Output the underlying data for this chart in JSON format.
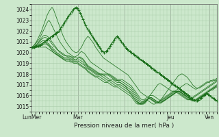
{
  "title": "",
  "xlabel": "Pression niveau de la mer( hPa )",
  "bg_color": "#cce8cc",
  "grid_color": "#aaccaa",
  "line_color": "#1a6e1a",
  "ylim": [
    1014.5,
    1024.5
  ],
  "yticks": [
    1015,
    1016,
    1017,
    1018,
    1019,
    1020,
    1021,
    1022,
    1023,
    1024
  ],
  "total_points": 260,
  "day_positions": [
    0,
    65,
    130,
    195,
    250
  ],
  "day_labels": [
    "LunMer",
    "Mar",
    "",
    "Jeu",
    "Ven"
  ],
  "series": [
    [
      1020.5,
      1020.6,
      1020.8,
      1021.0,
      1021.3,
      1021.6,
      1021.9,
      1022.3,
      1022.7,
      1023.1,
      1023.5,
      1023.8,
      1024.0,
      1024.2,
      1024.0,
      1023.6,
      1023.2,
      1022.8,
      1022.4,
      1022.0,
      1021.6,
      1021.3,
      1021.0,
      1020.8,
      1020.6,
      1020.4,
      1020.2,
      1020.1,
      1020.0,
      1020.0,
      1020.1,
      1020.3,
      1020.5,
      1020.8,
      1021.1,
      1021.3,
      1021.5,
      1021.4,
      1021.2,
      1021.0,
      1020.8,
      1020.5,
      1020.3,
      1020.1,
      1019.9,
      1019.7,
      1019.5,
      1019.4,
      1019.3,
      1019.2,
      1019.1,
      1019.0,
      1018.9,
      1018.8,
      1018.7,
      1018.6,
      1018.5,
      1018.4,
      1018.3,
      1018.2,
      1018.1,
      1018.0,
      1017.9,
      1017.7,
      1017.5,
      1017.3,
      1017.1,
      1016.9,
      1016.7,
      1016.5,
      1016.3,
      1016.2,
      1016.1,
      1016.0,
      1015.9,
      1015.8,
      1015.7,
      1015.6,
      1015.5,
      1015.4,
      1015.3,
      1015.3,
      1015.4,
      1015.6,
      1015.8,
      1016.0,
      1016.2,
      1016.4,
      1016.6,
      1016.8,
      1017.0,
      1017.2,
      1017.4,
      1017.6,
      1017.8,
      1017.9,
      1018.0,
      1018.0,
      1017.9,
      1017.8,
      1017.7,
      1017.5,
      1017.3,
      1017.1,
      1016.9,
      1016.8,
      1016.7,
      1016.7,
      1016.7,
      1016.8,
      1016.9,
      1017.0,
      1017.1,
      1017.2,
      1017.2,
      1017.3,
      1017.3,
      1017.4,
      1017.4,
      1017.5
    ],
    [
      1020.5,
      1020.6,
      1020.7,
      1020.9,
      1021.1,
      1021.3,
      1021.6,
      1021.9,
      1022.2,
      1022.5,
      1022.8,
      1023.0,
      1022.8,
      1022.5,
      1022.2,
      1021.9,
      1021.6,
      1021.3,
      1021.0,
      1020.8,
      1020.6,
      1020.4,
      1020.2,
      1020.0,
      1019.9,
      1019.8,
      1019.7,
      1019.6,
      1019.6,
      1019.7,
      1019.8,
      1020.0,
      1020.1,
      1020.0,
      1019.9,
      1019.7,
      1019.5,
      1019.3,
      1019.1,
      1019.0,
      1018.9,
      1018.8,
      1018.7,
      1018.6,
      1018.5,
      1018.4,
      1018.3,
      1018.2,
      1018.1,
      1018.0,
      1017.9,
      1017.8,
      1017.7,
      1017.6,
      1017.5,
      1017.4,
      1017.3,
      1017.2,
      1017.1,
      1017.0,
      1016.9,
      1016.7,
      1016.5,
      1016.3,
      1016.1,
      1015.9,
      1015.7,
      1015.5,
      1015.4,
      1015.3,
      1015.2,
      1015.2,
      1015.3,
      1015.4,
      1015.6,
      1015.8,
      1016.0,
      1016.2,
      1016.4,
      1016.6,
      1016.8,
      1017.0,
      1017.1,
      1017.1,
      1017.0,
      1016.9,
      1016.8,
      1016.7,
      1016.6,
      1016.5,
      1016.4,
      1016.4,
      1016.4,
      1016.5,
      1016.6,
      1016.7,
      1016.8,
      1016.9,
      1017.0,
      1017.1,
      1017.1,
      1017.0,
      1016.9,
      1016.8,
      1016.7,
      1016.6,
      1016.6,
      1016.7,
      1016.8,
      1016.9,
      1017.0,
      1017.1,
      1017.2,
      1017.3,
      1017.3,
      1017.4,
      1017.4,
      1017.5,
      1017.5,
      1017.6
    ],
    [
      1020.5,
      1020.5,
      1020.6,
      1020.7,
      1020.9,
      1021.1,
      1021.3,
      1021.5,
      1021.6,
      1021.6,
      1021.5,
      1021.4,
      1021.2,
      1021.0,
      1020.8,
      1020.6,
      1020.4,
      1020.2,
      1020.0,
      1019.9,
      1019.8,
      1019.7,
      1019.7,
      1019.7,
      1019.7,
      1019.6,
      1019.5,
      1019.4,
      1019.3,
      1019.4,
      1019.5,
      1019.6,
      1019.5,
      1019.4,
      1019.2,
      1019.0,
      1018.8,
      1018.7,
      1018.6,
      1018.5,
      1018.4,
      1018.3,
      1018.2,
      1018.1,
      1018.0,
      1018.0,
      1018.0,
      1018.0,
      1018.0,
      1018.0,
      1018.0,
      1017.9,
      1017.8,
      1017.7,
      1017.6,
      1017.5,
      1017.5,
      1017.5,
      1017.5,
      1017.4,
      1017.3,
      1017.2,
      1017.1,
      1017.0,
      1016.9,
      1016.7,
      1016.5,
      1016.3,
      1016.1,
      1015.9,
      1015.7,
      1015.6,
      1015.6,
      1015.7,
      1015.8,
      1015.9,
      1016.0,
      1016.0,
      1016.0,
      1015.9,
      1015.8,
      1015.7,
      1015.6,
      1015.5,
      1015.5,
      1015.5,
      1015.6,
      1015.7,
      1015.8,
      1015.9,
      1016.0,
      1016.1,
      1016.2,
      1016.3,
      1016.4,
      1016.4,
      1016.3,
      1016.2,
      1016.1,
      1016.0,
      1015.9,
      1015.8,
      1015.7,
      1015.6,
      1015.5,
      1015.5,
      1015.6,
      1015.7,
      1015.8,
      1015.9,
      1016.0,
      1016.1,
      1016.2,
      1016.3,
      1016.4,
      1016.5,
      1016.5,
      1016.6,
      1016.7,
      1016.8
    ],
    [
      1020.5,
      1020.5,
      1020.6,
      1020.7,
      1020.8,
      1021.0,
      1021.2,
      1021.3,
      1021.4,
      1021.4,
      1021.3,
      1021.2,
      1021.0,
      1020.8,
      1020.6,
      1020.5,
      1020.3,
      1020.2,
      1020.1,
      1020.0,
      1019.9,
      1019.8,
      1019.7,
      1019.6,
      1019.6,
      1019.6,
      1019.6,
      1019.5,
      1019.5,
      1019.5,
      1019.5,
      1019.5,
      1019.4,
      1019.3,
      1019.1,
      1018.9,
      1018.7,
      1018.6,
      1018.5,
      1018.4,
      1018.3,
      1018.2,
      1018.1,
      1018.0,
      1017.9,
      1017.9,
      1017.9,
      1017.9,
      1017.9,
      1017.9,
      1017.8,
      1017.7,
      1017.6,
      1017.5,
      1017.4,
      1017.4,
      1017.4,
      1017.4,
      1017.3,
      1017.2,
      1017.1,
      1017.0,
      1016.9,
      1016.8,
      1016.7,
      1016.5,
      1016.3,
      1016.1,
      1015.9,
      1015.7,
      1015.5,
      1015.4,
      1015.4,
      1015.5,
      1015.6,
      1015.7,
      1015.8,
      1015.8,
      1015.7,
      1015.6,
      1015.5,
      1015.4,
      1015.3,
      1015.3,
      1015.4,
      1015.5,
      1015.6,
      1015.7,
      1015.8,
      1015.9,
      1016.0,
      1016.1,
      1016.2,
      1016.3,
      1016.4,
      1016.4,
      1016.3,
      1016.2,
      1016.1,
      1016.0,
      1015.9,
      1015.8,
      1015.7,
      1015.6,
      1015.5,
      1015.5,
      1015.6,
      1015.7,
      1015.8,
      1015.9,
      1016.0,
      1016.1,
      1016.2,
      1016.3,
      1016.4,
      1016.5,
      1016.6,
      1016.7,
      1016.8,
      1016.9
    ],
    [
      1020.4,
      1020.5,
      1020.5,
      1020.6,
      1020.7,
      1020.8,
      1021.0,
      1021.1,
      1021.1,
      1021.0,
      1020.9,
      1020.8,
      1020.6,
      1020.5,
      1020.3,
      1020.2,
      1020.0,
      1019.9,
      1019.8,
      1019.7,
      1019.6,
      1019.5,
      1019.5,
      1019.5,
      1019.5,
      1019.4,
      1019.4,
      1019.3,
      1019.3,
      1019.3,
      1019.3,
      1019.3,
      1019.2,
      1019.1,
      1018.9,
      1018.8,
      1018.6,
      1018.5,
      1018.4,
      1018.3,
      1018.2,
      1018.1,
      1018.0,
      1018.0,
      1018.0,
      1018.0,
      1017.9,
      1017.8,
      1017.7,
      1017.6,
      1017.5,
      1017.5,
      1017.5,
      1017.4,
      1017.3,
      1017.2,
      1017.2,
      1017.2,
      1017.1,
      1017.0,
      1016.9,
      1016.8,
      1016.7,
      1016.6,
      1016.5,
      1016.3,
      1016.1,
      1015.9,
      1015.7,
      1015.5,
      1015.3,
      1015.2,
      1015.2,
      1015.3,
      1015.5,
      1015.7,
      1015.8,
      1015.8,
      1015.7,
      1015.6,
      1015.5,
      1015.4,
      1015.3,
      1015.3,
      1015.4,
      1015.5,
      1015.6,
      1015.7,
      1015.8,
      1015.9,
      1016.0,
      1016.1,
      1016.2,
      1016.3,
      1016.4,
      1016.4,
      1016.3,
      1016.2,
      1016.1,
      1016.0,
      1015.9,
      1015.8,
      1015.7,
      1015.6,
      1015.5,
      1015.5,
      1015.6,
      1015.7,
      1015.8,
      1015.9,
      1016.0,
      1016.1,
      1016.2,
      1016.3,
      1016.4,
      1016.5,
      1016.6,
      1016.7,
      1016.8,
      1016.9
    ],
    [
      1020.4,
      1020.4,
      1020.5,
      1020.5,
      1020.6,
      1020.7,
      1020.8,
      1020.9,
      1021.0,
      1020.9,
      1020.8,
      1020.7,
      1020.5,
      1020.3,
      1020.2,
      1020.0,
      1019.9,
      1019.8,
      1019.7,
      1019.6,
      1019.5,
      1019.4,
      1019.4,
      1019.4,
      1019.4,
      1019.3,
      1019.3,
      1019.2,
      1019.2,
      1019.2,
      1019.2,
      1019.1,
      1019.0,
      1018.9,
      1018.8,
      1018.6,
      1018.5,
      1018.4,
      1018.3,
      1018.2,
      1018.1,
      1018.0,
      1017.9,
      1017.9,
      1017.9,
      1017.8,
      1017.7,
      1017.6,
      1017.5,
      1017.4,
      1017.4,
      1017.4,
      1017.3,
      1017.2,
      1017.1,
      1017.0,
      1017.0,
      1017.0,
      1016.9,
      1016.8,
      1016.7,
      1016.6,
      1016.5,
      1016.4,
      1016.3,
      1016.1,
      1015.9,
      1015.7,
      1015.5,
      1015.3,
      1015.2,
      1015.2,
      1015.3,
      1015.4,
      1015.6,
      1015.7,
      1015.8,
      1015.7,
      1015.6,
      1015.5,
      1015.4,
      1015.3,
      1015.3,
      1015.4,
      1015.5,
      1015.6,
      1015.7,
      1015.8,
      1015.9,
      1016.0,
      1016.1,
      1016.2,
      1016.3,
      1016.4,
      1016.4,
      1016.3,
      1016.2,
      1016.1,
      1016.0,
      1015.9,
      1015.8,
      1015.7,
      1015.6,
      1015.5,
      1015.5,
      1015.6,
      1015.7,
      1015.8,
      1015.9,
      1016.0,
      1016.1,
      1016.2,
      1016.3,
      1016.4,
      1016.5,
      1016.6,
      1016.7,
      1016.8,
      1016.9,
      1017.0
    ],
    [
      1020.3,
      1020.4,
      1020.4,
      1020.5,
      1020.5,
      1020.6,
      1020.7,
      1020.8,
      1020.8,
      1020.8,
      1020.7,
      1020.6,
      1020.4,
      1020.2,
      1020.0,
      1019.9,
      1019.8,
      1019.7,
      1019.6,
      1019.5,
      1019.4,
      1019.3,
      1019.3,
      1019.3,
      1019.3,
      1019.2,
      1019.2,
      1019.1,
      1019.1,
      1019.1,
      1019.0,
      1018.9,
      1018.8,
      1018.7,
      1018.6,
      1018.5,
      1018.3,
      1018.2,
      1018.1,
      1018.0,
      1017.9,
      1017.8,
      1017.8,
      1017.8,
      1017.7,
      1017.6,
      1017.5,
      1017.4,
      1017.3,
      1017.3,
      1017.3,
      1017.2,
      1017.1,
      1017.0,
      1016.9,
      1016.9,
      1016.9,
      1016.8,
      1016.7,
      1016.6,
      1016.5,
      1016.4,
      1016.3,
      1016.2,
      1016.1,
      1015.9,
      1015.7,
      1015.5,
      1015.3,
      1015.2,
      1015.2,
      1015.3,
      1015.4,
      1015.5,
      1015.6,
      1015.7,
      1015.7,
      1015.6,
      1015.5,
      1015.4,
      1015.3,
      1015.3,
      1015.4,
      1015.5,
      1015.6,
      1015.7,
      1015.8,
      1015.9,
      1016.0,
      1016.1,
      1016.2,
      1016.3,
      1016.4,
      1016.4,
      1016.3,
      1016.2,
      1016.1,
      1016.0,
      1015.9,
      1015.8,
      1015.7,
      1015.6,
      1015.6,
      1015.7,
      1015.8,
      1015.9,
      1016.0,
      1016.1,
      1016.2,
      1016.3,
      1016.4,
      1016.5,
      1016.6,
      1016.7,
      1016.8,
      1016.9,
      1017.0,
      1017.1,
      1017.2,
      1017.3
    ],
    [
      1020.5,
      1020.5,
      1020.5,
      1020.5,
      1020.5,
      1020.5,
      1020.5,
      1020.5,
      1020.5,
      1020.5,
      1020.4,
      1020.3,
      1020.2,
      1020.1,
      1020.0,
      1019.9,
      1019.8,
      1019.7,
      1019.6,
      1019.5,
      1019.4,
      1019.3,
      1019.2,
      1019.2,
      1019.2,
      1019.1,
      1019.1,
      1019.0,
      1019.0,
      1019.0,
      1018.9,
      1018.8,
      1018.7,
      1018.6,
      1018.5,
      1018.4,
      1018.2,
      1018.1,
      1018.0,
      1017.9,
      1017.8,
      1017.7,
      1017.7,
      1017.6,
      1017.5,
      1017.4,
      1017.3,
      1017.2,
      1017.2,
      1017.2,
      1017.1,
      1017.0,
      1016.9,
      1016.8,
      1016.8,
      1016.8,
      1016.7,
      1016.6,
      1016.5,
      1016.4,
      1016.3,
      1016.2,
      1016.1,
      1016.0,
      1015.9,
      1015.7,
      1015.5,
      1015.3,
      1015.2,
      1015.2,
      1015.3,
      1015.4,
      1015.5,
      1015.6,
      1015.6,
      1015.5,
      1015.4,
      1015.3,
      1015.2,
      1015.2,
      1015.3,
      1015.4,
      1015.5,
      1015.6,
      1015.7,
      1015.8,
      1015.9,
      1016.0,
      1016.1,
      1016.2,
      1016.3,
      1016.4,
      1016.4,
      1016.3,
      1016.2,
      1016.1,
      1016.0,
      1015.9,
      1015.8,
      1015.7,
      1015.6,
      1015.6,
      1015.7,
      1015.8,
      1015.9,
      1016.0,
      1016.1,
      1016.2,
      1016.3,
      1016.4,
      1016.5,
      1016.6,
      1016.7,
      1016.8,
      1016.9,
      1017.0,
      1017.1,
      1017.2,
      1017.3,
      1017.4
    ]
  ],
  "obs_x": [
    0,
    3,
    6,
    9,
    12,
    15,
    18,
    20,
    22,
    24,
    26,
    28,
    30,
    32,
    34,
    36,
    38,
    40,
    42,
    44,
    46,
    48,
    50,
    52,
    54,
    56,
    58,
    60,
    62,
    64,
    66,
    68,
    70,
    72,
    74,
    76,
    78,
    80,
    82,
    84,
    86,
    88,
    90,
    92,
    94,
    96,
    98,
    100,
    102,
    104,
    106,
    108,
    110,
    112,
    114,
    116,
    118,
    120,
    122,
    124,
    126,
    128,
    130,
    132,
    134,
    136,
    138,
    140,
    142,
    144,
    146,
    148,
    150,
    152,
    154,
    156,
    158,
    160,
    162,
    164,
    166,
    168,
    170,
    172,
    174,
    176,
    178,
    180,
    182,
    184,
    186,
    188,
    190,
    192,
    194,
    196,
    198,
    200,
    202,
    204,
    206,
    208,
    210,
    212,
    214,
    216,
    218,
    220,
    222,
    224,
    226,
    228,
    230,
    232,
    234,
    236,
    238,
    240,
    242,
    244,
    246,
    248,
    250,
    252,
    254,
    256,
    258,
    260
  ],
  "obs_y": [
    1020.5,
    1020.5,
    1020.6,
    1020.6,
    1020.7,
    1020.8,
    1021.0,
    1021.1,
    1021.2,
    1021.3,
    1021.4,
    1021.5,
    1021.6,
    1021.7,
    1021.8,
    1021.9,
    1022.0,
    1022.2,
    1022.4,
    1022.6,
    1022.8,
    1023.0,
    1023.2,
    1023.4,
    1023.6,
    1023.8,
    1024.0,
    1024.1,
    1024.2,
    1024.1,
    1023.9,
    1023.7,
    1023.4,
    1023.1,
    1022.8,
    1022.5,
    1022.2,
    1022.0,
    1021.8,
    1021.6,
    1021.4,
    1021.2,
    1021.0,
    1020.8,
    1020.6,
    1020.4,
    1020.2,
    1020.1,
    1020.0,
    1020.1,
    1020.2,
    1020.4,
    1020.6,
    1020.8,
    1021.0,
    1021.2,
    1021.4,
    1021.5,
    1021.4,
    1021.2,
    1021.0,
    1020.8,
    1020.6,
    1020.4,
    1020.3,
    1020.2,
    1020.1,
    1020.0,
    1019.9,
    1019.8,
    1019.7,
    1019.6,
    1019.5,
    1019.4,
    1019.3,
    1019.2,
    1019.1,
    1019.0,
    1018.9,
    1018.8,
    1018.7,
    1018.6,
    1018.5,
    1018.4,
    1018.3,
    1018.2,
    1018.1,
    1018.0,
    1017.9,
    1017.8,
    1017.7,
    1017.6,
    1017.5,
    1017.4,
    1017.3,
    1017.2,
    1017.1,
    1017.0,
    1016.9,
    1016.8,
    1016.7,
    1016.6,
    1016.5,
    1016.4,
    1016.3,
    1016.2,
    1016.1,
    1016.0,
    1015.9,
    1015.8,
    1015.7,
    1015.6,
    1015.5,
    1015.5,
    1015.6,
    1015.7,
    1015.8,
    1015.9,
    1016.0,
    1016.1,
    1016.2,
    1016.1,
    1016.0,
    1015.9,
    1015.8,
    1015.7,
    1015.6,
    1015.5
  ]
}
